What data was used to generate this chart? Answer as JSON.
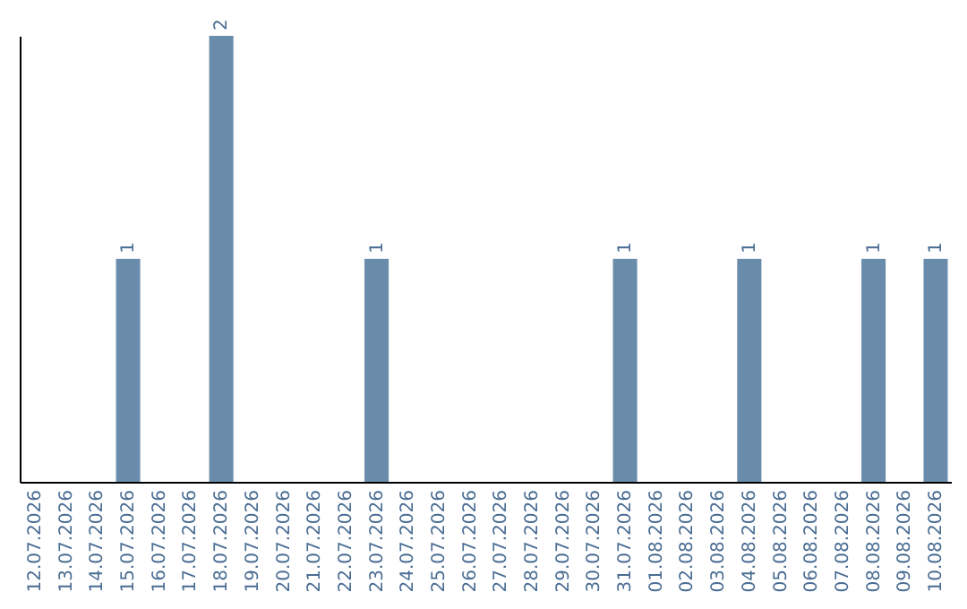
{
  "chart_data": {
    "type": "bar",
    "categories": [
      "12.07.2026",
      "13.07.2026",
      "14.07.2026",
      "15.07.2026",
      "16.07.2026",
      "17.07.2026",
      "18.07.2026",
      "19.07.2026",
      "20.07.2026",
      "21.07.2026",
      "22.07.2026",
      "23.07.2026",
      "24.07.2026",
      "25.07.2026",
      "26.07.2026",
      "27.07.2026",
      "28.07.2026",
      "29.07.2026",
      "30.07.2026",
      "31.07.2026",
      "01.08.2026",
      "02.08.2026",
      "03.08.2026",
      "04.08.2026",
      "05.08.2026",
      "06.08.2026",
      "07.08.2026",
      "08.08.2026",
      "09.08.2026",
      "10.08.2026"
    ],
    "values": [
      0,
      0,
      0,
      1,
      0,
      0,
      2,
      0,
      0,
      0,
      0,
      1,
      0,
      0,
      0,
      0,
      0,
      0,
      0,
      1,
      0,
      0,
      0,
      1,
      0,
      0,
      0,
      1,
      0,
      1
    ],
    "value_labels": [
      null,
      null,
      null,
      "1",
      null,
      null,
      "2",
      null,
      null,
      null,
      null,
      "1",
      null,
      null,
      null,
      null,
      null,
      null,
      null,
      "1",
      null,
      null,
      null,
      "1",
      null,
      null,
      null,
      "1",
      null,
      "1"
    ],
    "color": "#6a8cab",
    "ylim": [
      0,
      2
    ],
    "tick_labels": "x"
  }
}
